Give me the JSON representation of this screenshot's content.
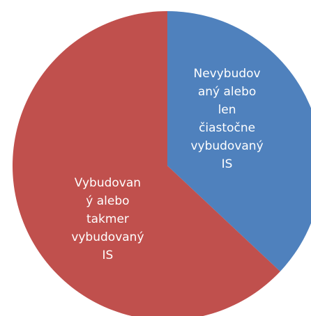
{
  "chart_data": {
    "type": "pie",
    "categories": [
      "Nevybudov\naný alebo\nlen\nčiastočne\nvybudovaný\nIS",
      "Vybudovan\ný alebo\ntakmer\nvybudovaný\nIS"
    ],
    "values": [
      37,
      63
    ],
    "colors": [
      "#4f81bd",
      "#c0504d"
    ]
  }
}
